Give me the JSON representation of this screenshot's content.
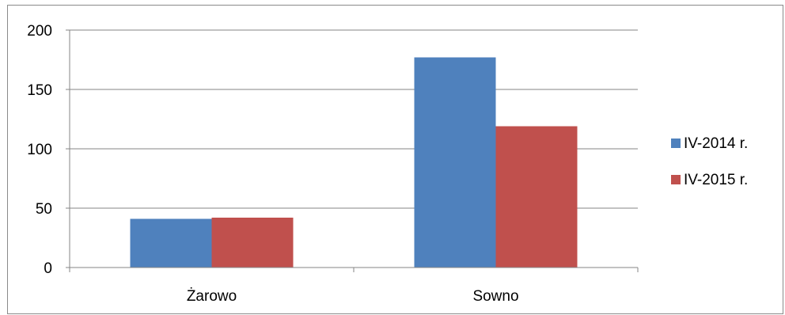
{
  "chart_data": {
    "type": "bar",
    "categories": [
      "Żarowo",
      "Sowno"
    ],
    "series": [
      {
        "name": "IV-2014 r.",
        "color": "#4F81BD",
        "values": [
          41,
          177
        ]
      },
      {
        "name": "IV-2015 r.",
        "color": "#C0504D",
        "values": [
          42,
          119
        ]
      }
    ],
    "ylim": [
      0,
      200
    ],
    "yticks": [
      "0",
      "50",
      "100",
      "150",
      "200"
    ],
    "grid": true,
    "legend": "right",
    "title": "",
    "xlabel": "",
    "ylabel": ""
  }
}
